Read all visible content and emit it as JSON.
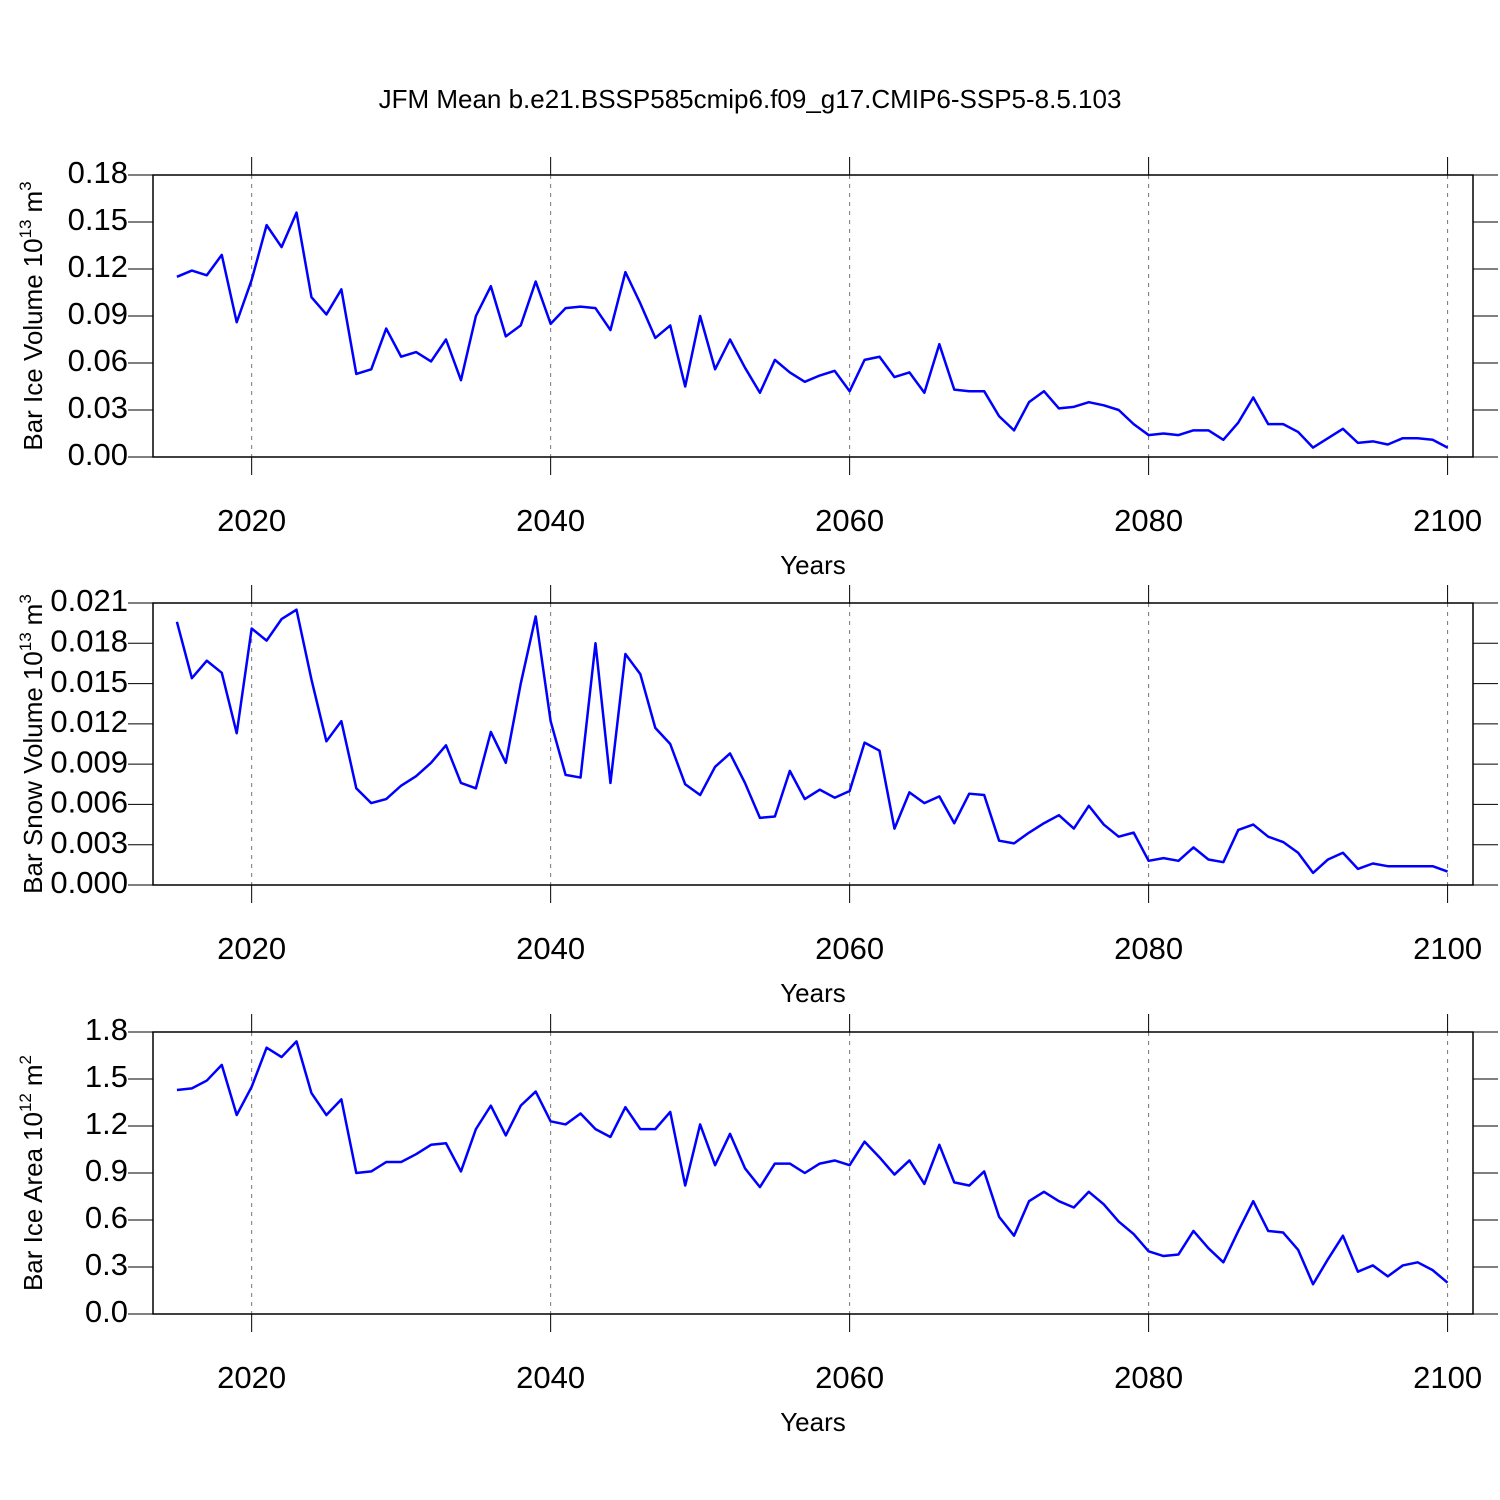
{
  "chart_data": [
    {
      "type": "line",
      "title": "JFM Mean b.e21.BSSP585cmip6.f09_g17.CMIP6-SSP5-8.5.103",
      "xlabel": "Years",
      "ylabel": {
        "text": "Bar Ice Volume",
        "scale": "10",
        "scale_exp": "13",
        "unit": "m",
        "unit_exp": "3"
      },
      "color": "#0000ff",
      "xgrid": true,
      "xlim": [
        2013.4,
        2101.7
      ],
      "xticks": [
        2020,
        2040,
        2060,
        2080,
        2100
      ],
      "ylim": [
        0,
        0.18
      ],
      "yticks": [
        {
          "value": 0,
          "label": "0.00"
        },
        0.03,
        0.06,
        0.09,
        0.12,
        0.15,
        0.18
      ],
      "x": [
        2015,
        2016,
        2017,
        2018,
        2019,
        2020,
        2021,
        2022,
        2023,
        2024,
        2025,
        2026,
        2027,
        2028,
        2029,
        2030,
        2031,
        2032,
        2033,
        2034,
        2035,
        2036,
        2037,
        2038,
        2039,
        2040,
        2041,
        2042,
        2043,
        2044,
        2045,
        2046,
        2047,
        2048,
        2049,
        2050,
        2051,
        2052,
        2053,
        2054,
        2055,
        2056,
        2057,
        2058,
        2059,
        2060,
        2061,
        2062,
        2063,
        2064,
        2065,
        2066,
        2067,
        2068,
        2069,
        2070,
        2071,
        2072,
        2073,
        2074,
        2075,
        2076,
        2077,
        2078,
        2079,
        2080,
        2081,
        2082,
        2083,
        2084,
        2085,
        2086,
        2087,
        2088,
        2089,
        2090,
        2091,
        2092,
        2093,
        2094,
        2095,
        2096,
        2097,
        2098,
        2099,
        2100
      ],
      "values": [
        0.115,
        0.119,
        0.116,
        0.129,
        0.086,
        0.113,
        0.148,
        0.134,
        0.156,
        0.102,
        0.091,
        0.107,
        0.053,
        0.056,
        0.082,
        0.064,
        0.067,
        0.061,
        0.075,
        0.049,
        0.09,
        0.109,
        0.077,
        0.084,
        0.112,
        0.085,
        0.095,
        0.096,
        0.095,
        0.081,
        0.118,
        0.098,
        0.076,
        0.084,
        0.045,
        0.09,
        0.056,
        0.075,
        0.057,
        0.041,
        0.062,
        0.054,
        0.048,
        0.052,
        0.055,
        0.042,
        0.062,
        0.064,
        0.051,
        0.054,
        0.041,
        0.072,
        0.043,
        0.042,
        0.042,
        0.026,
        0.017,
        0.035,
        0.042,
        0.031,
        0.032,
        0.035,
        0.033,
        0.03,
        0.021,
        0.014,
        0.015,
        0.014,
        0.017,
        0.017,
        0.011,
        0.022,
        0.038,
        0.021,
        0.021,
        0.016,
        0.006,
        0.012,
        0.018,
        0.009,
        0.01,
        0.008,
        0.012,
        0.012,
        0.011,
        0.006
      ]
    },
    {
      "type": "line",
      "xlabel": "Years",
      "ylabel": {
        "text": "Bar Snow Volume",
        "scale": "10",
        "scale_exp": "13",
        "unit": "m",
        "unit_exp": "3"
      },
      "color": "#0000ff",
      "xgrid": true,
      "xlim": [
        2013.4,
        2101.7
      ],
      "xticks": [
        2020,
        2040,
        2060,
        2080,
        2100
      ],
      "ylim": [
        0,
        0.021
      ],
      "yticks": [
        {
          "value": 0,
          "label": "0.000"
        },
        0.003,
        0.006,
        0.009,
        0.012,
        0.015,
        0.018,
        0.021
      ],
      "x": [
        2015,
        2016,
        2017,
        2018,
        2019,
        2020,
        2021,
        2022,
        2023,
        2024,
        2025,
        2026,
        2027,
        2028,
        2029,
        2030,
        2031,
        2032,
        2033,
        2034,
        2035,
        2036,
        2037,
        2038,
        2039,
        2040,
        2041,
        2042,
        2043,
        2044,
        2045,
        2046,
        2047,
        2048,
        2049,
        2050,
        2051,
        2052,
        2053,
        2054,
        2055,
        2056,
        2057,
        2058,
        2059,
        2060,
        2061,
        2062,
        2063,
        2064,
        2065,
        2066,
        2067,
        2068,
        2069,
        2070,
        2071,
        2072,
        2073,
        2074,
        2075,
        2076,
        2077,
        2078,
        2079,
        2080,
        2081,
        2082,
        2083,
        2084,
        2085,
        2086,
        2087,
        2088,
        2089,
        2090,
        2091,
        2092,
        2093,
        2094,
        2095,
        2096,
        2097,
        2098,
        2099,
        2100
      ],
      "values": [
        0.0196,
        0.0154,
        0.0167,
        0.0158,
        0.0113,
        0.0191,
        0.0182,
        0.0198,
        0.0205,
        0.0153,
        0.0107,
        0.0122,
        0.0072,
        0.0061,
        0.0064,
        0.0074,
        0.0081,
        0.0091,
        0.0104,
        0.0076,
        0.0072,
        0.0114,
        0.0091,
        0.015,
        0.02,
        0.0122,
        0.0082,
        0.008,
        0.018,
        0.0076,
        0.0172,
        0.0157,
        0.0117,
        0.0105,
        0.0075,
        0.0067,
        0.0088,
        0.0098,
        0.0076,
        0.005,
        0.0051,
        0.0085,
        0.0064,
        0.0071,
        0.0065,
        0.007,
        0.0106,
        0.01,
        0.0042,
        0.0069,
        0.0061,
        0.0066,
        0.0046,
        0.0068,
        0.0067,
        0.0033,
        0.0031,
        0.0039,
        0.0046,
        0.0052,
        0.0042,
        0.0059,
        0.0045,
        0.0036,
        0.0039,
        0.0018,
        0.002,
        0.0018,
        0.0028,
        0.0019,
        0.0017,
        0.0041,
        0.0045,
        0.0036,
        0.0032,
        0.0024,
        0.0009,
        0.0019,
        0.0024,
        0.0012,
        0.0016,
        0.0014,
        0.0014,
        0.0014,
        0.0014,
        0.001
      ]
    },
    {
      "type": "line",
      "xlabel": "Years",
      "ylabel": {
        "text": "Bar Ice Area",
        "scale": "10",
        "scale_exp": "12",
        "unit": "m",
        "unit_exp": "2"
      },
      "color": "#0000ff",
      "xgrid": true,
      "xlim": [
        2013.4,
        2101.7
      ],
      "xticks": [
        2020,
        2040,
        2060,
        2080,
        2100
      ],
      "ylim": [
        0,
        1.8
      ],
      "yticks": [
        {
          "value": 0,
          "label": "0.0"
        },
        0.3,
        0.6,
        0.9,
        1.2,
        1.5,
        1.8
      ],
      "x": [
        2015,
        2016,
        2017,
        2018,
        2019,
        2020,
        2021,
        2022,
        2023,
        2024,
        2025,
        2026,
        2027,
        2028,
        2029,
        2030,
        2031,
        2032,
        2033,
        2034,
        2035,
        2036,
        2037,
        2038,
        2039,
        2040,
        2041,
        2042,
        2043,
        2044,
        2045,
        2046,
        2047,
        2048,
        2049,
        2050,
        2051,
        2052,
        2053,
        2054,
        2055,
        2056,
        2057,
        2058,
        2059,
        2060,
        2061,
        2062,
        2063,
        2064,
        2065,
        2066,
        2067,
        2068,
        2069,
        2070,
        2071,
        2072,
        2073,
        2074,
        2075,
        2076,
        2077,
        2078,
        2079,
        2080,
        2081,
        2082,
        2083,
        2084,
        2085,
        2086,
        2087,
        2088,
        2089,
        2090,
        2091,
        2092,
        2093,
        2094,
        2095,
        2096,
        2097,
        2098,
        2099,
        2100
      ],
      "values": [
        1.43,
        1.44,
        1.49,
        1.59,
        1.27,
        1.45,
        1.7,
        1.64,
        1.74,
        1.41,
        1.27,
        1.37,
        0.9,
        0.91,
        0.97,
        0.97,
        1.02,
        1.08,
        1.09,
        0.91,
        1.18,
        1.33,
        1.14,
        1.33,
        1.42,
        1.23,
        1.21,
        1.28,
        1.18,
        1.13,
        1.32,
        1.18,
        1.18,
        1.29,
        0.82,
        1.21,
        0.95,
        1.15,
        0.93,
        0.81,
        0.96,
        0.96,
        0.9,
        0.96,
        0.98,
        0.95,
        1.1,
        1.0,
        0.89,
        0.98,
        0.83,
        1.08,
        0.84,
        0.82,
        0.91,
        0.62,
        0.5,
        0.72,
        0.78,
        0.72,
        0.68,
        0.78,
        0.7,
        0.59,
        0.51,
        0.4,
        0.37,
        0.38,
        0.53,
        0.42,
        0.33,
        0.53,
        0.72,
        0.53,
        0.52,
        0.41,
        0.19,
        0.35,
        0.5,
        0.27,
        0.31,
        0.24,
        0.31,
        0.33,
        0.28,
        0.2
      ]
    }
  ]
}
